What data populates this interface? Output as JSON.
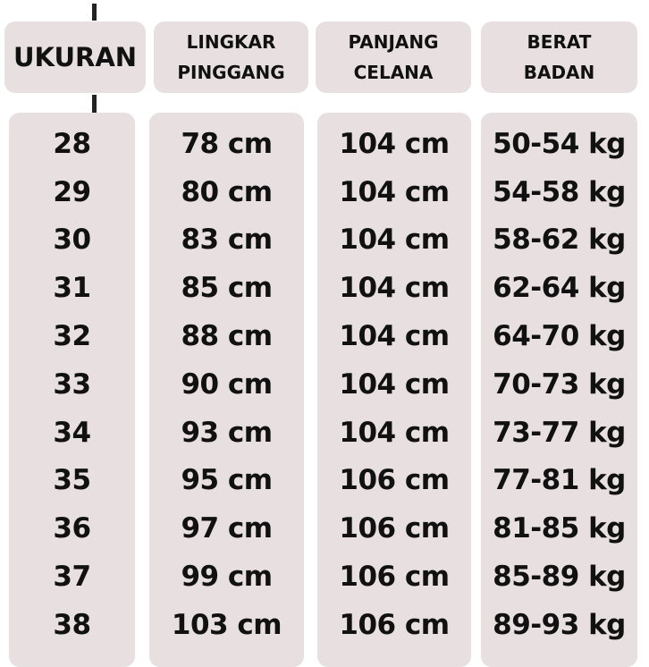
{
  "headers": {
    "size": "UKURAN",
    "waist": [
      "LINGKAR",
      "PINGGANG"
    ],
    "length": [
      "PANJANG",
      "CELANA"
    ],
    "weight": [
      "BERAT",
      "BADAN"
    ]
  },
  "colors": {
    "box": "#e8e0e0",
    "text": "#111111",
    "background": "#ffffff"
  },
  "rows": [
    {
      "size": "28",
      "waist": "78 cm",
      "length": "104 cm",
      "weight": "50-54 kg"
    },
    {
      "size": "29",
      "waist": "80 cm",
      "length": "104 cm",
      "weight": "54-58 kg"
    },
    {
      "size": "30",
      "waist": "83 cm",
      "length": "104 cm",
      "weight": "58-62 kg"
    },
    {
      "size": "31",
      "waist": "85 cm",
      "length": "104 cm",
      "weight": "62-64 kg"
    },
    {
      "size": "32",
      "waist": "88 cm",
      "length": "104 cm",
      "weight": "64-70 kg"
    },
    {
      "size": "33",
      "waist": "90 cm",
      "length": "104 cm",
      "weight": "70-73 kg"
    },
    {
      "size": "34",
      "waist": "93 cm",
      "length": "104 cm",
      "weight": "73-77 kg"
    },
    {
      "size": "35",
      "waist": "95 cm",
      "length": "106 cm",
      "weight": "77-81 kg"
    },
    {
      "size": "36",
      "waist": "97 cm",
      "length": "106 cm",
      "weight": "81-85 kg"
    },
    {
      "size": "37",
      "waist": "99 cm",
      "length": "106 cm",
      "weight": "85-89 kg"
    },
    {
      "size": "38",
      "waist": "103 cm",
      "length": "106 cm",
      "weight": "89-93 kg"
    }
  ]
}
